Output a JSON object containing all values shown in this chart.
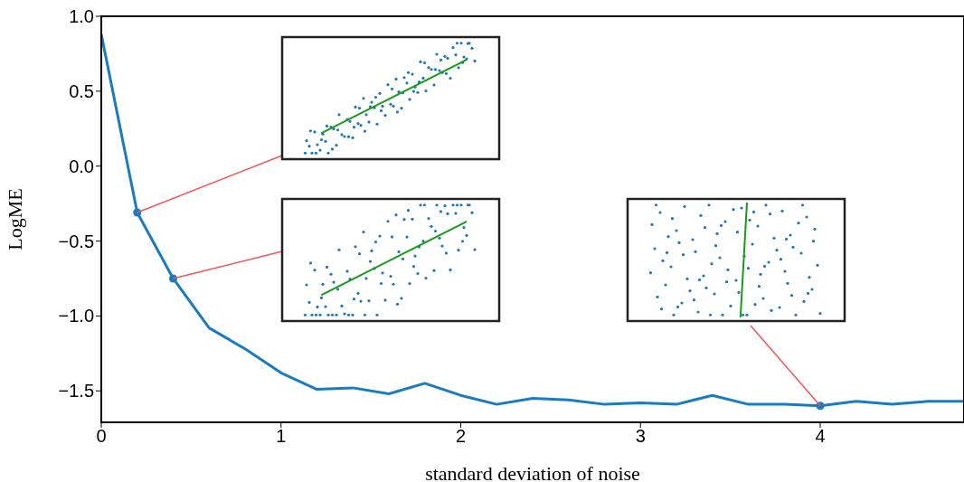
{
  "chart_data": {
    "type": "line",
    "xlabel": "standard deviation of noise",
    "ylabel": "LogME",
    "xlim": [
      0,
      4.8
    ],
    "xticks": [
      0,
      1,
      2,
      3,
      4
    ],
    "ylim": [
      -1.71,
      1.0
    ],
    "yticks": [
      {
        "value": 1,
        "label": "1.0"
      },
      {
        "value": 0.5,
        "label": "0.5"
      },
      {
        "value": 0,
        "label": "0.0"
      },
      {
        "value": -0.5,
        "label": "−0.5"
      },
      {
        "value": -1,
        "label": "−1.0"
      },
      {
        "value": -1.5,
        "label": "−1.5"
      }
    ],
    "marker": "none",
    "line_style": "solid",
    "x": [
      0,
      0.2,
      0.4,
      0.6,
      0.8,
      1.0,
      1.2,
      1.4,
      1.6,
      1.8,
      2.0,
      2.2,
      2.4,
      2.6,
      2.8,
      3.0,
      3.2,
      3.4,
      3.6,
      3.8,
      4.0,
      4.2,
      4.4,
      4.6,
      4.8
    ],
    "series": [
      {
        "color": "#1a7cc0",
        "values": [
          0.88,
          -0.31,
          -0.75,
          -1.08,
          -1.22,
          -1.38,
          -1.49,
          -1.48,
          -1.52,
          -1.45,
          -1.53,
          -1.59,
          -1.55,
          -1.56,
          -1.59,
          -1.58,
          -1.59,
          -1.53,
          -1.59,
          -1.59,
          -1.6,
          -1.57,
          -1.59,
          -1.57,
          -1.57
        ]
      },
      {
        "type": "scatter",
        "marker": "circle",
        "color": "#1a7cc0",
        "x": [
          0.2,
          0.4,
          4.0
        ],
        "values": [
          -0.31,
          -0.75,
          -1.6
        ]
      }
    ]
  }
}
